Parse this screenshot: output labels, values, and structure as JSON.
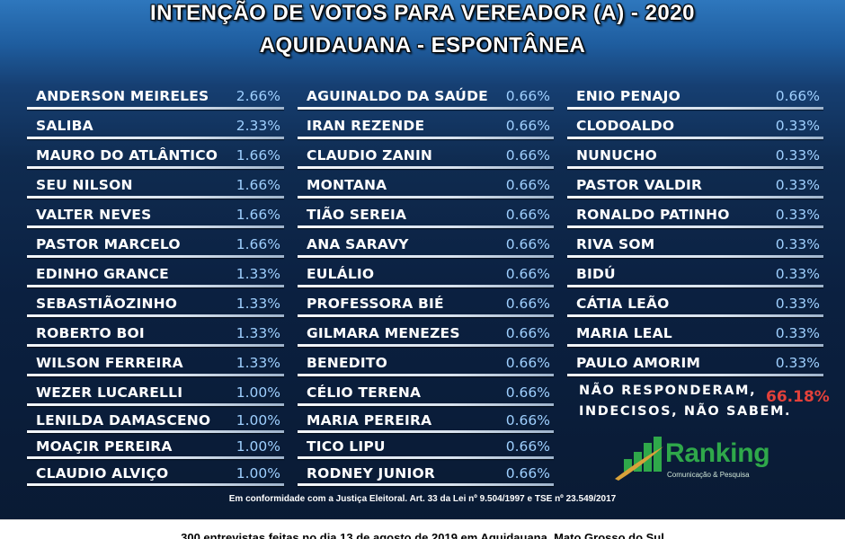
{
  "title": {
    "line1": "INTENÇÃO DE VOTOS PARA VEREADOR (A) - 2020",
    "line2": "AQUIDAUANA - ESPONTÂNEA"
  },
  "columns": [
    [
      {
        "name": "ANDERSON MEIRELES",
        "pct": "2.66%"
      },
      {
        "name": "SALIBA",
        "pct": "2.33%"
      },
      {
        "name": "MAURO DO ATLÂNTICO",
        "pct": "1.66%"
      },
      {
        "name": "SEU NILSON",
        "pct": "1.66%"
      },
      {
        "name": "VALTER NEVES",
        "pct": "1.66%"
      },
      {
        "name": "PASTOR MARCELO",
        "pct": "1.66%"
      },
      {
        "name": "EDINHO GRANCE",
        "pct": "1.33%"
      },
      {
        "name": "SEBASTIÃOZINHO",
        "pct": "1.33%"
      },
      {
        "name": "ROBERTO BOI",
        "pct": "1.33%"
      },
      {
        "name": "WILSON FERREIRA",
        "pct": "1.33%"
      },
      {
        "name": "WEZER LUCARELLI",
        "pct": "1.00%"
      },
      {
        "name": "LENILDA DAMASCENO",
        "pct": "1.00%"
      },
      {
        "name": "MOAÇIR PEREIRA",
        "pct": "1.00%"
      },
      {
        "name": "CLAUDIO ALVIÇO",
        "pct": "1.00%"
      }
    ],
    [
      {
        "name": "AGUINALDO DA SAÚDE",
        "pct": "0.66%"
      },
      {
        "name": "IRAN REZENDE",
        "pct": "0.66%"
      },
      {
        "name": "CLAUDIO ZANIN",
        "pct": "0.66%"
      },
      {
        "name": "MONTANA",
        "pct": "0.66%"
      },
      {
        "name": "TIÃO SEREIA",
        "pct": "0.66%"
      },
      {
        "name": "ANA SARAVY",
        "pct": "0.66%"
      },
      {
        "name": "EULÁLIO",
        "pct": "0.66%"
      },
      {
        "name": "PROFESSORA BIÉ",
        "pct": "0.66%"
      },
      {
        "name": "GILMARA MENEZES",
        "pct": "0.66%"
      },
      {
        "name": "BENEDITO",
        "pct": "0.66%"
      },
      {
        "name": "CÉLIO TERENA",
        "pct": "0.66%"
      },
      {
        "name": "MARIA PEREIRA",
        "pct": "0.66%"
      },
      {
        "name": "TICO LIPU",
        "pct": "0.66%"
      },
      {
        "name": "RODNEY JUNIOR",
        "pct": "0.66%"
      }
    ],
    [
      {
        "name": "ENIO PENAJO",
        "pct": "0.66%"
      },
      {
        "name": "CLODOALDO",
        "pct": "0.33%"
      },
      {
        "name": "NUNUCHO",
        "pct": "0.33%"
      },
      {
        "name": "PASTOR VALDIR",
        "pct": "0.33%"
      },
      {
        "name": "RONALDO PATINHO",
        "pct": "0.33%"
      },
      {
        "name": "RIVA SOM",
        "pct": "0.33%"
      },
      {
        "name": "BIDÚ",
        "pct": "0.33%"
      },
      {
        "name": "CÁTIA LEÃO",
        "pct": "0.33%"
      },
      {
        "name": "MARIA LEAL",
        "pct": "0.33%"
      },
      {
        "name": "PAULO AMORIM",
        "pct": "0.33%"
      }
    ]
  ],
  "no_answer": {
    "line1": "NÃO RESPONDERAM,",
    "line2": "INDECISOS, NÃO SABEM.",
    "value": "66.18%"
  },
  "logo": {
    "brand": "Ranking",
    "tagline": "Comunicação & Pesquisa"
  },
  "legal_text": "Em conformidade com a Justiça Eleitoral. Art. 33 da Lei nº 9.504/1997 e TSE nº 23.549/2017",
  "footer_text": "300 entrevistas feitas no dia 13 de agosto de 2019 em Aquidauana, Mato Grosso do Sul",
  "colors": {
    "name": "#ffffff",
    "pct": "#9fd0ff",
    "highlight": "#e4413a",
    "brand": "#2fa84a"
  }
}
